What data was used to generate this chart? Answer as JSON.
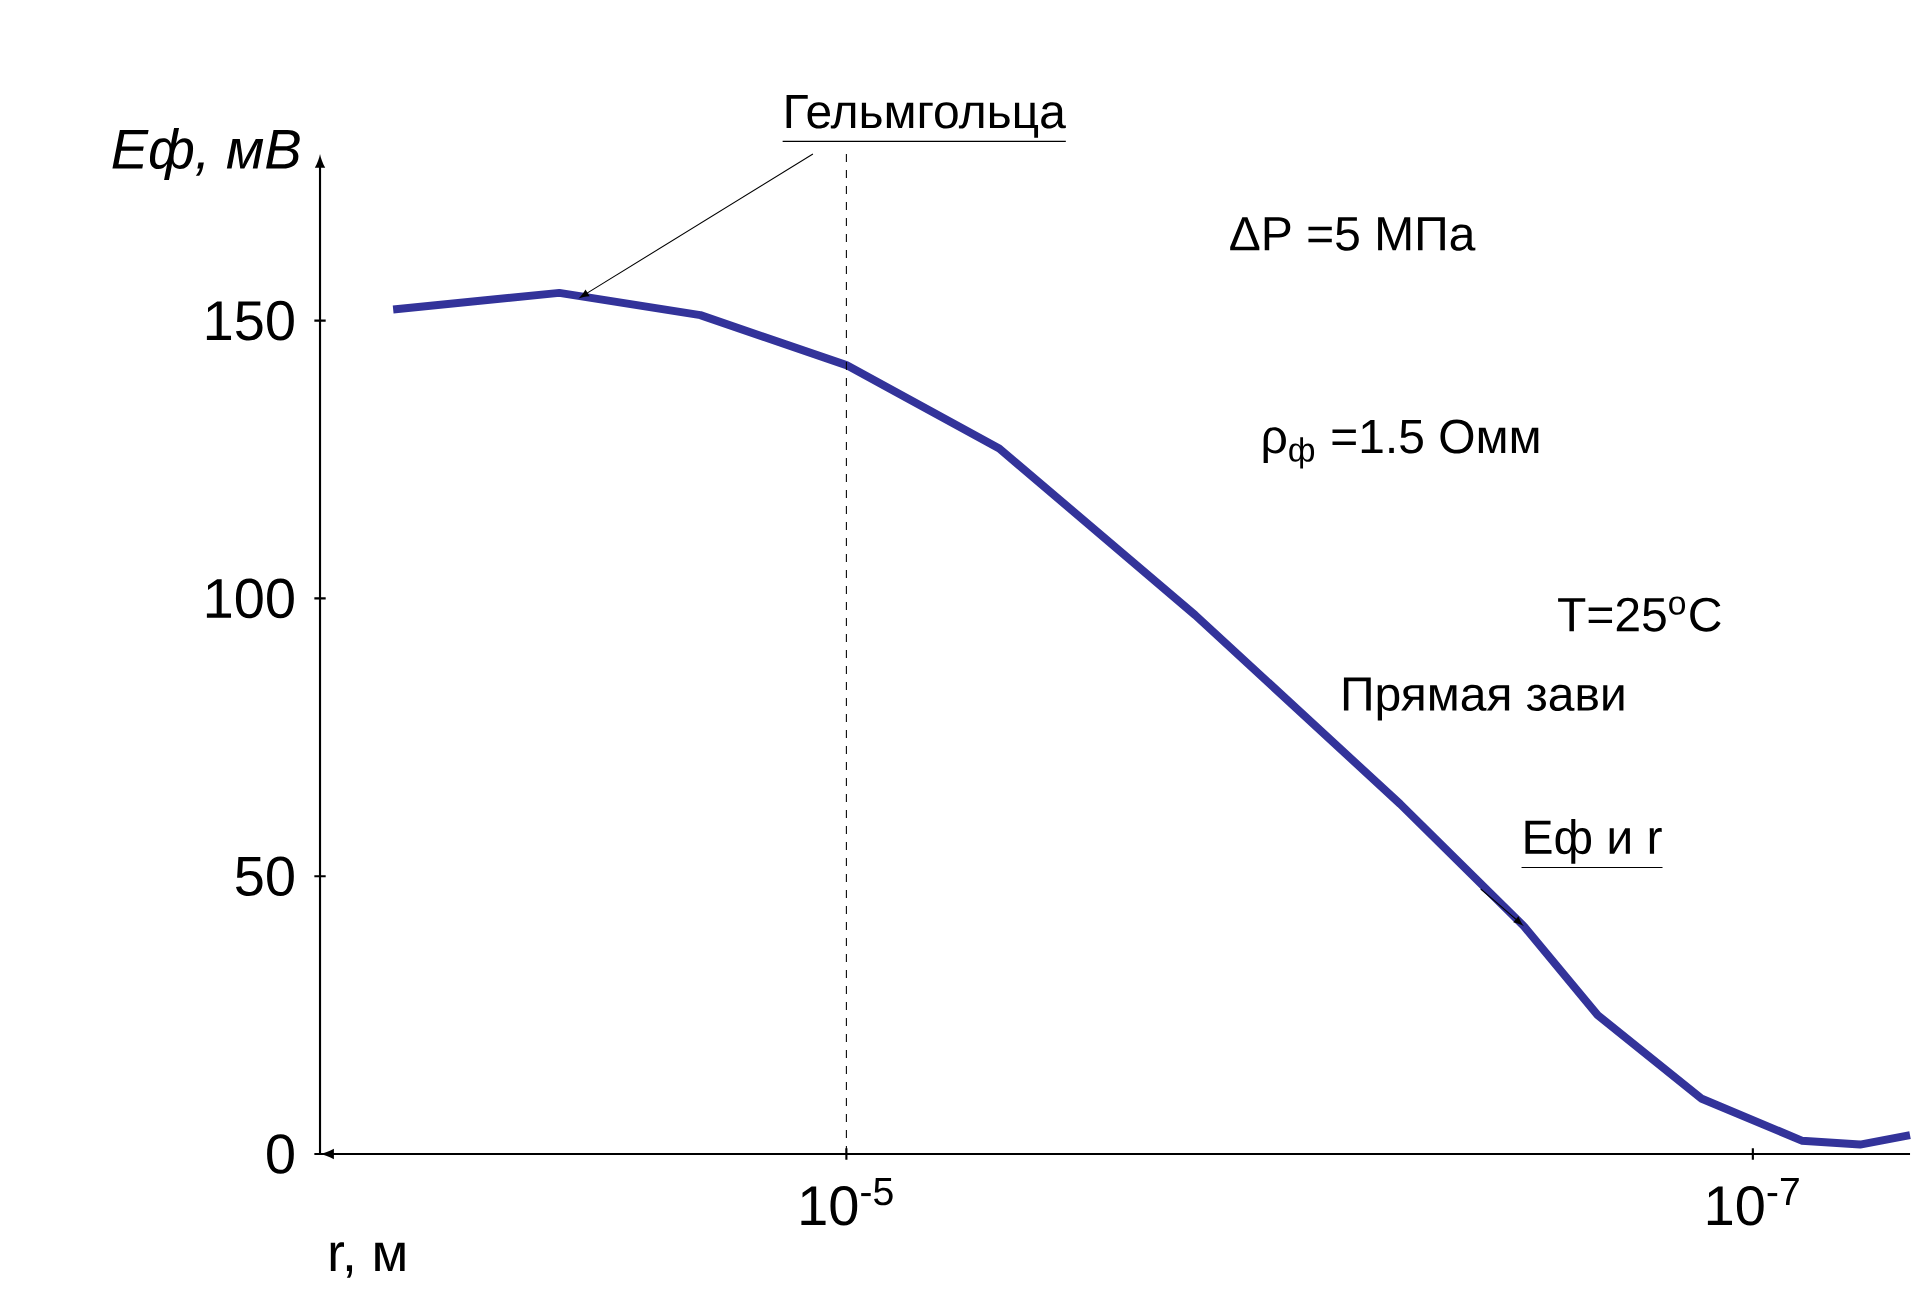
{
  "chart_data": {
    "type": "line",
    "xlabel": "r, м",
    "ylabel": "Eф, мВ",
    "log": "x",
    "xlim": [
      0.000145,
      4.5e-08
    ],
    "ylim": [
      0,
      180
    ],
    "xticks": [
      {
        "value": 1e-05,
        "label": "10$^{-5}$"
      },
      {
        "value": 1e-07,
        "label": "10$^{-7}$"
      }
    ],
    "yticks": [
      0,
      50,
      100,
      150
    ],
    "x": [
      0.0001,
      4.3e-05,
      2.1e-05,
      1e-05,
      4.6e-06,
      1.7e-06,
      6e-07,
      3.2e-07,
      2.2e-07,
      1.3e-07,
      7.8e-08,
      5.8e-08,
      4.5e-08
    ],
    "series": [
      {
        "color": "#33339a",
        "values": [
          152,
          155,
          151,
          142,
          127,
          97,
          63,
          41,
          25,
          10,
          2.4,
          1.7,
          3.4
        ]
      }
    ],
    "ref_lines": [
      {
        "axis": "x",
        "value": 1e-05,
        "line_style": "dashed"
      }
    ],
    "annotations": [
      {
        "text": "Гельмгольца",
        "x": 3.9e-05,
        "y": 154
      },
      "ΔP =5 МПа",
      "ρ$_{ф}$ =1.5 Омм",
      "T=25$^{o}$C",
      "Прямая зави",
      {
        "text": "Еф и r",
        "x": 3.2e-07,
        "y": 41
      }
    ]
  }
}
